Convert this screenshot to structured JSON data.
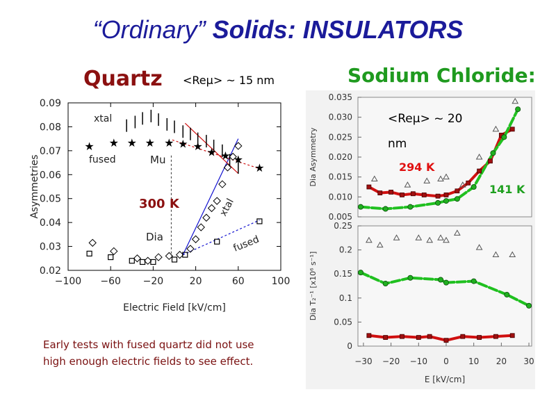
{
  "title": {
    "part1": "“Ordinary”",
    "part2": "Solids:",
    "part3": "INSULATORS"
  },
  "quartz": {
    "heading": "Quartz",
    "radius_label": "<Reμ> ~ 15 nm"
  },
  "nacl": {
    "heading": "Sodium Chloride:"
  },
  "note": {
    "line1": "Early tests with fused quartz did not use",
    "line2": "high enough electric fields to see effect."
  },
  "colors": {
    "title": "#1b1b9a",
    "quartz_heading": "#8b1010",
    "nacl_heading": "#1f9a1f",
    "red_fit": "#d01010",
    "green_fit": "#20c020",
    "blue_fit": "#1010d0"
  },
  "chart_data": [
    {
      "type": "scatter",
      "id": "quartz",
      "xlabel": "Electric Field [kV/cm]",
      "ylabel": "Asymmetries",
      "xlim": [
        -100,
        100
      ],
      "ylim": [
        0.02,
        0.09
      ],
      "xticks": [
        -100,
        -60,
        -20,
        20,
        60,
        100
      ],
      "yticks": [
        0.02,
        0.03,
        0.04,
        0.05,
        0.06,
        0.07,
        0.08,
        0.09
      ],
      "annotations": [
        "xtal",
        "fused",
        "Mu",
        "Dia",
        "300 K",
        "xtal",
        "fused"
      ],
      "series": [
        {
          "marker": "star",
          "x": [
            -80,
            -57,
            -40,
            -23,
            -5,
            8,
            22,
            35,
            48,
            60,
            80
          ],
          "y": [
            0.072,
            0.0735,
            0.0735,
            0.0735,
            0.0735,
            0.073,
            0.072,
            0.0695,
            0.068,
            0.0665,
            0.063
          ]
        },
        {
          "marker": "vbar",
          "x": [
            -45,
            -37,
            -30,
            -22,
            -15,
            -7,
            0,
            8,
            15,
            22,
            30,
            37,
            45,
            52,
            60
          ],
          "y": [
            0.0805,
            0.082,
            0.0835,
            0.0845,
            0.083,
            0.081,
            0.08,
            0.078,
            0.077,
            0.075,
            0.074,
            0.072,
            0.07,
            0.066,
            0.063
          ]
        },
        {
          "marker": "square",
          "x": [
            -80,
            -60,
            -40,
            -30,
            -20,
            0,
            10,
            40,
            80
          ],
          "y": [
            0.027,
            0.0255,
            0.024,
            0.0235,
            0.0235,
            0.0245,
            0.0265,
            0.032,
            0.0405
          ]
        },
        {
          "marker": "diamond",
          "x": [
            -77,
            -57,
            -35,
            -25,
            -15,
            -5,
            5,
            15,
            20,
            25,
            30,
            35,
            40,
            45,
            50,
            55,
            60
          ],
          "y": [
            0.0315,
            0.028,
            0.025,
            0.024,
            0.0255,
            0.026,
            0.0265,
            0.029,
            0.033,
            0.038,
            0.042,
            0.046,
            0.049,
            0.056,
            0.063,
            0.0675,
            0.072
          ]
        }
      ],
      "fit_lines": [
        {
          "color": "blue",
          "style": "solid",
          "x": [
            8,
            60
          ],
          "y": [
            0.0265,
            0.075
          ]
        },
        {
          "color": "blue",
          "style": "dashed",
          "x": [
            8,
            80
          ],
          "y": [
            0.0265,
            0.041
          ]
        },
        {
          "color": "red",
          "style": "dashed",
          "x": [
            -2,
            80
          ],
          "y": [
            0.0745,
            0.0625
          ]
        },
        {
          "color": "red",
          "style": "solid",
          "x": [
            10,
            60
          ],
          "y": [
            0.0815,
            0.0605
          ]
        }
      ],
      "reference_x": -3
    },
    {
      "type": "scatter",
      "id": "nacl-top",
      "ylabel": "Dia Asymmetry",
      "xlim": [
        -32,
        31
      ],
      "ylim": [
        0.005,
        0.035
      ],
      "yticks": [
        0.005,
        0.01,
        0.015,
        0.02,
        0.025,
        0.03,
        0.035
      ],
      "annotations": [
        "<Reμ> ~ 20",
        "nm",
        "294 K",
        "141 K"
      ],
      "series": [
        {
          "name": "294 K",
          "color": "red",
          "x": [
            -28,
            -24,
            -20,
            -16,
            -12,
            -8,
            -3,
            0,
            4,
            8,
            12,
            16,
            20,
            24
          ],
          "y": [
            0.0125,
            0.011,
            0.0112,
            0.0105,
            0.0108,
            0.0105,
            0.0102,
            0.0105,
            0.0115,
            0.0135,
            0.0165,
            0.019,
            0.0255,
            0.027
          ]
        },
        {
          "name": "141 K",
          "color": "green",
          "x": [
            -31,
            -22,
            -13,
            -3,
            0,
            4,
            10,
            17,
            21,
            26
          ],
          "y": [
            0.0075,
            0.007,
            0.0075,
            0.0085,
            0.009,
            0.0095,
            0.0125,
            0.021,
            0.025,
            0.032
          ]
        },
        {
          "marker": "triangle",
          "x": [
            -26,
            -14,
            -7,
            -2,
            0,
            6,
            12,
            18,
            25
          ],
          "y": [
            0.0145,
            0.013,
            0.014,
            0.0145,
            0.015,
            0.013,
            0.02,
            0.027,
            0.034
          ]
        }
      ]
    },
    {
      "type": "scatter",
      "id": "nacl-bottom",
      "xlabel": "E [kV/cm]",
      "ylabel": "Dia T₂⁻¹ [x10⁶ s⁻¹]",
      "xlim": [
        -32,
        31
      ],
      "ylim": [
        0,
        0.25
      ],
      "xticks": [
        -30,
        -20,
        -10,
        0,
        10,
        20,
        30
      ],
      "yticks": [
        0,
        0.05,
        0.1,
        0.15,
        0.2,
        0.25
      ],
      "series": [
        {
          "color": "green",
          "x": [
            -31,
            -22,
            -13,
            -2,
            0,
            10,
            22,
            30
          ],
          "y": [
            0.153,
            0.13,
            0.142,
            0.138,
            0.132,
            0.135,
            0.107,
            0.084
          ]
        },
        {
          "color": "red",
          "x": [
            -28,
            -22,
            -16,
            -10,
            -6,
            0,
            6,
            12,
            18,
            24
          ],
          "y": [
            0.022,
            0.018,
            0.02,
            0.018,
            0.02,
            0.012,
            0.02,
            0.018,
            0.02,
            0.022
          ]
        },
        {
          "marker": "triangle",
          "x": [
            -28,
            -24,
            -18,
            -10,
            -6,
            -2,
            0,
            4,
            12,
            18,
            24
          ],
          "y": [
            0.22,
            0.21,
            0.225,
            0.225,
            0.22,
            0.225,
            0.22,
            0.235,
            0.205,
            0.19,
            0.19
          ]
        }
      ]
    }
  ]
}
